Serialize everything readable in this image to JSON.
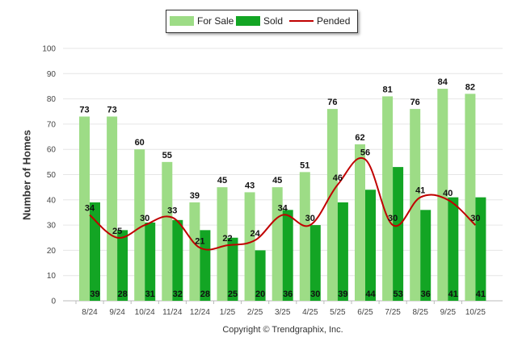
{
  "chart_data": {
    "type": "bar",
    "title": "",
    "xlabel": "",
    "ylabel": "Number of Homes",
    "ylim": [
      0,
      100
    ],
    "yticks": [
      0,
      10,
      20,
      30,
      40,
      50,
      60,
      70,
      80,
      90,
      100
    ],
    "categories": [
      "8/24",
      "9/24",
      "10/24",
      "11/24",
      "12/24",
      "1/25",
      "2/25",
      "3/25",
      "4/25",
      "5/25",
      "6/25",
      "7/25",
      "8/25",
      "9/25",
      "10/25"
    ],
    "series": [
      {
        "name": "For Sale",
        "kind": "bar",
        "color": "#9ddc86",
        "values": [
          73,
          73,
          60,
          55,
          39,
          45,
          43,
          45,
          51,
          76,
          62,
          81,
          76,
          84,
          82
        ]
      },
      {
        "name": "Sold",
        "kind": "bar",
        "color": "#13a524",
        "values": [
          39,
          28,
          31,
          32,
          28,
          25,
          20,
          36,
          30,
          39,
          44,
          53,
          36,
          41,
          41
        ]
      },
      {
        "name": "Pended",
        "kind": "line",
        "color": "#c00000",
        "values": [
          34,
          25,
          30,
          33,
          21,
          22,
          24,
          34,
          30,
          46,
          56,
          30,
          41,
          40,
          30
        ]
      }
    ],
    "legend_position": "top-center",
    "grid": true
  },
  "footer": {
    "copyright": "Copyright © Trendgraphix, Inc."
  }
}
